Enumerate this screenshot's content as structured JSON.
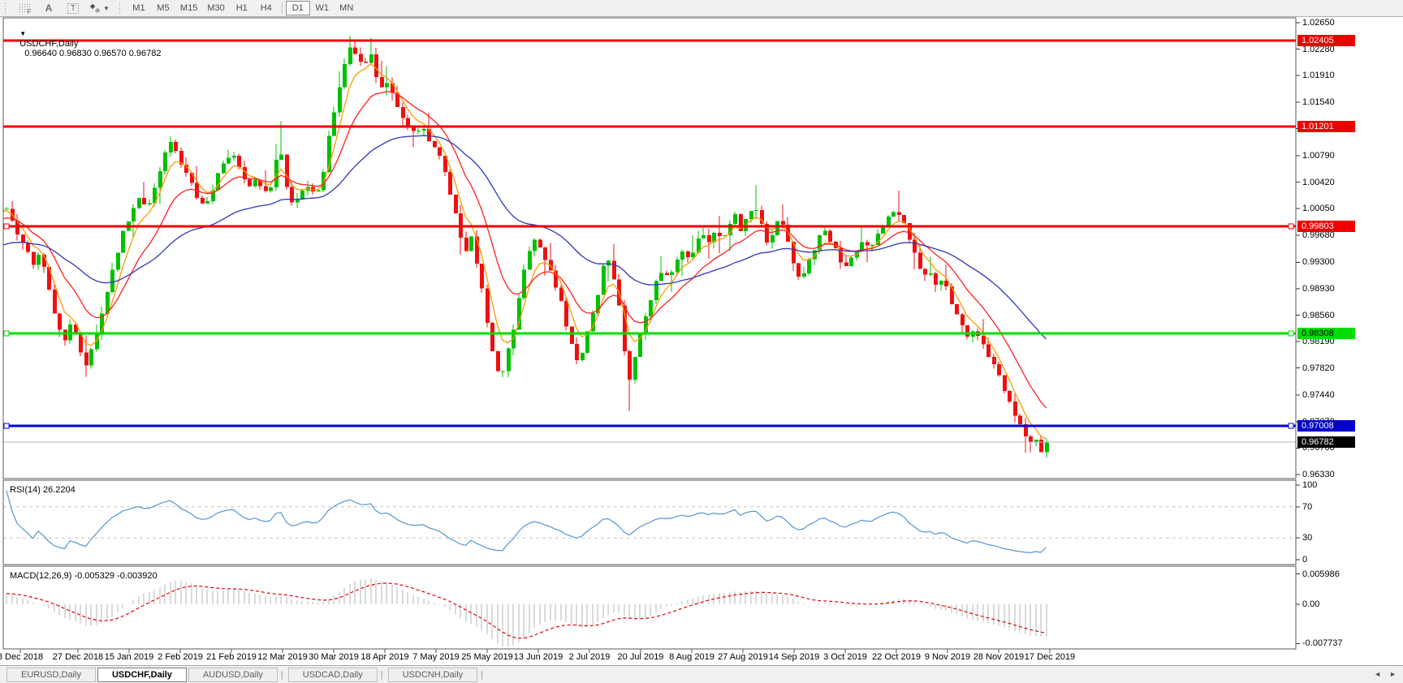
{
  "icons": {
    "dropdown": "▼",
    "diamond_dark": "◆",
    "diamond_light": "◆",
    "caret": "▼",
    "arrow_left": "◄",
    "arrow_right": "►",
    "grid_f": "F",
    "letter_a": "A",
    "letter_t": "T"
  },
  "toolbar": {
    "timeframes": [
      "M1",
      "M5",
      "M15",
      "M30",
      "H1",
      "H4",
      "D1",
      "W1",
      "MN"
    ],
    "active_timeframe": "D1"
  },
  "chart": {
    "title_symbol": "USDCHF,Daily",
    "title_ohlc": "0.96640 0.96830 0.96570 0.96782"
  },
  "tabs": {
    "items": [
      {
        "label": "EURUSD,Daily",
        "active": false
      },
      {
        "label": "USDCHF,Daily",
        "active": true
      },
      {
        "label": "AUDUSD,Daily",
        "active": false
      },
      {
        "label": "USDCAD,Daily",
        "active": false
      },
      {
        "label": "USDCNH,Daily",
        "active": false
      }
    ]
  },
  "chart_data": {
    "type": "candlestick",
    "symbol": "USDCHF",
    "timeframe": "Daily",
    "ohlc_display": "0.96640 0.96830 0.96570 0.96782",
    "last_ohlc": {
      "open": 0.9664,
      "high": 0.9683,
      "low": 0.9657,
      "close": 0.96782
    },
    "price_range": {
      "top": 1.02718,
      "bottom": 0.96274
    },
    "y_ticks": [
      "1.02650",
      "1.02280",
      "1.01910",
      "1.01540",
      "1.01170",
      "1.00790",
      "1.00420",
      "1.00050",
      "0.99680",
      "0.99300",
      "0.98930",
      "0.98560",
      "0.98190",
      "0.97820",
      "0.97440",
      "0.97070",
      "0.96700",
      "0.96330"
    ],
    "x_dates": [
      "8 Dec 2018",
      "27 Dec 2018",
      "15 Jan 2019",
      "2 Feb 2019",
      "21 Feb 2019",
      "12 Mar 2019",
      "30 Mar 2019",
      "18 Apr 2019",
      "7 May 2019",
      "25 May 2019",
      "13 Jun 2019",
      "2 Jul 2019",
      "20 Jul 2019",
      "8 Aug 2019",
      "27 Aug 2019",
      "14 Sep 2019",
      "3 Oct 2019",
      "22 Oct 2019",
      "9 Nov 2019",
      "28 Nov 2019",
      "17 Dec 2019"
    ],
    "h_lines": [
      {
        "price": 1.02405,
        "label": "1.02405",
        "color": "#f00000",
        "label_bg": "#ee0000",
        "label_fg": "#ffffff",
        "handles": false
      },
      {
        "price": 1.01201,
        "label": "1.01201",
        "color": "#f00000",
        "label_bg": "#ee0000",
        "label_fg": "#ffffff",
        "handles": false
      },
      {
        "price": 0.99803,
        "label": "0.99803",
        "color": "#f00000",
        "label_bg": "#ee0000",
        "label_fg": "#ffffff",
        "handles": true
      },
      {
        "price": 0.98308,
        "label": "0.98308",
        "color": "#00dc00",
        "label_bg": "#00dd00",
        "label_fg": "#000000",
        "handles": true
      },
      {
        "price": 0.97008,
        "label": "0.97008",
        "color": "#0000dc",
        "label_bg": "#0000cc",
        "label_fg": "#ffffff",
        "handles": true
      }
    ],
    "bid": {
      "price": 0.96782,
      "label": "0.96782",
      "label_bg": "#000000",
      "label_fg": "#ffffff",
      "line_color": "#b8b8b8"
    },
    "candle_colors": {
      "up": "#00c000",
      "down": "#ee1010"
    },
    "moving_averages": [
      {
        "period": 5,
        "color": "#ff9900"
      },
      {
        "period": 13,
        "color": "#ff2020"
      },
      {
        "period": 40,
        "color": "#3038b8"
      }
    ],
    "close_path": [
      [
        -260,
        0.987
      ],
      [
        -180,
        0.991
      ],
      [
        -100,
        0.9965
      ],
      [
        -40,
        0.9992
      ],
      [
        8,
        1.0004
      ],
      [
        18,
        0.99734
      ],
      [
        30,
        0.99564
      ],
      [
        40,
        0.99224
      ],
      [
        48,
        0.99451
      ],
      [
        58,
        0.99054
      ],
      [
        68,
        0.98543
      ],
      [
        78,
        0.98203
      ],
      [
        88,
        0.98452
      ],
      [
        98,
        0.98089
      ],
      [
        105,
        0.97806
      ],
      [
        115,
        0.98203
      ],
      [
        125,
        0.986
      ],
      [
        138,
        0.99224
      ],
      [
        150,
        0.99678
      ],
      [
        160,
        0.99995
      ],
      [
        170,
        1.00245
      ],
      [
        180,
        1.00041
      ],
      [
        192,
        1.00415
      ],
      [
        205,
        1.00926
      ],
      [
        212,
        1.01016
      ],
      [
        220,
        1.00755
      ],
      [
        230,
        1.00562
      ],
      [
        240,
        1.00267
      ],
      [
        250,
        1.00075
      ],
      [
        258,
        1.00245
      ],
      [
        265,
        1.00449
      ],
      [
        275,
        1.00699
      ],
      [
        285,
        1.00869
      ],
      [
        295,
        1.00642
      ],
      [
        305,
        1.00336
      ],
      [
        315,
        1.00494
      ],
      [
        325,
        1.00245
      ],
      [
        335,
        1.00336
      ],
      [
        343,
        1.01096
      ],
      [
        350,
        1.00415
      ],
      [
        360,
        1.00075
      ],
      [
        370,
        1.00222
      ],
      [
        380,
        1.00415
      ],
      [
        390,
        1.00245
      ],
      [
        398,
        1.00585
      ],
      [
        408,
        1.01266
      ],
      [
        415,
        1.01663
      ],
      [
        425,
        1.02117
      ],
      [
        432,
        1.0231
      ],
      [
        440,
        1.02174
      ],
      [
        448,
        1.02003
      ],
      [
        455,
        1.0223
      ],
      [
        462,
        1.01947
      ],
      [
        470,
        1.0172
      ],
      [
        478,
        1.0189
      ],
      [
        488,
        1.01493
      ],
      [
        498,
        1.01266
      ],
      [
        508,
        1.01096
      ],
      [
        518,
        1.01175
      ],
      [
        528,
        1.01016
      ],
      [
        538,
        1.00812
      ],
      [
        548,
        1.00585
      ],
      [
        556,
        1.00188
      ],
      [
        564,
        0.99791
      ],
      [
        572,
        0.99451
      ],
      [
        580,
        0.99621
      ],
      [
        588,
        0.99224
      ],
      [
        595,
        0.98827
      ],
      [
        602,
        0.98203
      ],
      [
        610,
        0.97862
      ],
      [
        618,
        0.97726
      ],
      [
        626,
        0.98089
      ],
      [
        634,
        0.98486
      ],
      [
        642,
        0.98997
      ],
      [
        650,
        0.99451
      ],
      [
        658,
        0.99621
      ],
      [
        666,
        0.99451
      ],
      [
        674,
        0.99224
      ],
      [
        682,
        0.99054
      ],
      [
        690,
        0.9877
      ],
      [
        698,
        0.98316
      ],
      [
        706,
        0.98033
      ],
      [
        712,
        0.97862
      ],
      [
        718,
        0.98089
      ],
      [
        724,
        0.98339
      ],
      [
        730,
        0.98657
      ],
      [
        736,
        0.98883
      ],
      [
        742,
        0.99224
      ],
      [
        748,
        0.9936
      ],
      [
        754,
        0.9911
      ],
      [
        762,
        0.98657
      ],
      [
        768,
        0.98089
      ],
      [
        774,
        0.97635
      ],
      [
        780,
        0.97919
      ],
      [
        786,
        0.98203
      ],
      [
        792,
        0.9843
      ],
      [
        800,
        0.9877
      ],
      [
        808,
        0.99054
      ],
      [
        816,
        0.99224
      ],
      [
        824,
        0.99054
      ],
      [
        832,
        0.99281
      ],
      [
        840,
        0.99451
      ],
      [
        848,
        0.99337
      ],
      [
        856,
        0.99564
      ],
      [
        864,
        0.99678
      ],
      [
        872,
        0.99541
      ],
      [
        880,
        0.99734
      ],
      [
        888,
        0.99621
      ],
      [
        896,
        0.99791
      ],
      [
        904,
        0.99961
      ],
      [
        912,
        0.99734
      ],
      [
        920,
        0.99904
      ],
      [
        928,
        1.00109
      ],
      [
        936,
        0.99848
      ],
      [
        944,
        0.99621
      ],
      [
        952,
        0.99734
      ],
      [
        960,
        0.99904
      ],
      [
        968,
        0.99678
      ],
      [
        976,
        0.99337
      ],
      [
        984,
        0.99054
      ],
      [
        992,
        0.99224
      ],
      [
        1000,
        0.99451
      ],
      [
        1008,
        0.99621
      ],
      [
        1016,
        0.99734
      ],
      [
        1024,
        0.99564
      ],
      [
        1032,
        0.99394
      ],
      [
        1040,
        0.99224
      ],
      [
        1048,
        0.9936
      ],
      [
        1056,
        0.99507
      ],
      [
        1064,
        0.99621
      ],
      [
        1072,
        0.99451
      ],
      [
        1080,
        0.99678
      ],
      [
        1088,
        0.99848
      ],
      [
        1096,
        0.99927
      ],
      [
        1104,
        0.99995
      ],
      [
        1112,
        0.99904
      ],
      [
        1120,
        0.99621
      ],
      [
        1128,
        0.99337
      ],
      [
        1136,
        0.99054
      ],
      [
        1144,
        0.99224
      ],
      [
        1152,
        0.9894
      ],
      [
        1160,
        0.9911
      ],
      [
        1168,
        0.98827
      ],
      [
        1176,
        0.986
      ],
      [
        1184,
        0.9843
      ],
      [
        1192,
        0.98259
      ],
      [
        1200,
        0.98339
      ],
      [
        1208,
        0.98203
      ],
      [
        1216,
        0.98033
      ],
      [
        1224,
        0.97862
      ],
      [
        1232,
        0.97635
      ],
      [
        1240,
        0.97409
      ],
      [
        1248,
        0.97182
      ],
      [
        1256,
        0.97012
      ],
      [
        1264,
        0.96841
      ],
      [
        1272,
        0.96751
      ],
      [
        1280,
        0.96899
      ],
      [
        1288,
        0.96782
      ]
    ],
    "forced_extremes": [
      [
        105,
        0.977
      ],
      [
        343,
        1.0127
      ],
      [
        432,
        1.0247
      ],
      [
        455,
        1.0244
      ],
      [
        618,
        0.9769
      ],
      [
        774,
        0.9722
      ],
      [
        928,
        1.0038
      ],
      [
        1104,
        1.003
      ],
      [
        1272,
        0.9664
      ]
    ],
    "rsi": {
      "title": "RSI(14) 26.2204",
      "period": 14,
      "current": 26.2204,
      "levels": [
        70,
        30
      ],
      "line_color": "#5596d2",
      "ticks": [
        [
          "100",
          100
        ],
        [
          "70",
          70
        ],
        [
          "30",
          30
        ],
        [
          "0",
          0
        ]
      ]
    },
    "macd": {
      "title": "MACD(12,26,9) -0.005329 -0.003920",
      "fast": 12,
      "slow": 26,
      "signal": 9,
      "macd_value": -0.005329,
      "signal_value": -0.00392,
      "hist_color": "#b4b4b4",
      "signal_color": "#e00000",
      "ticks": [
        [
          "0.005986",
          0.005986
        ],
        [
          "0.00",
          0
        ],
        [
          "-0.007737",
          -0.007737
        ]
      ]
    }
  }
}
